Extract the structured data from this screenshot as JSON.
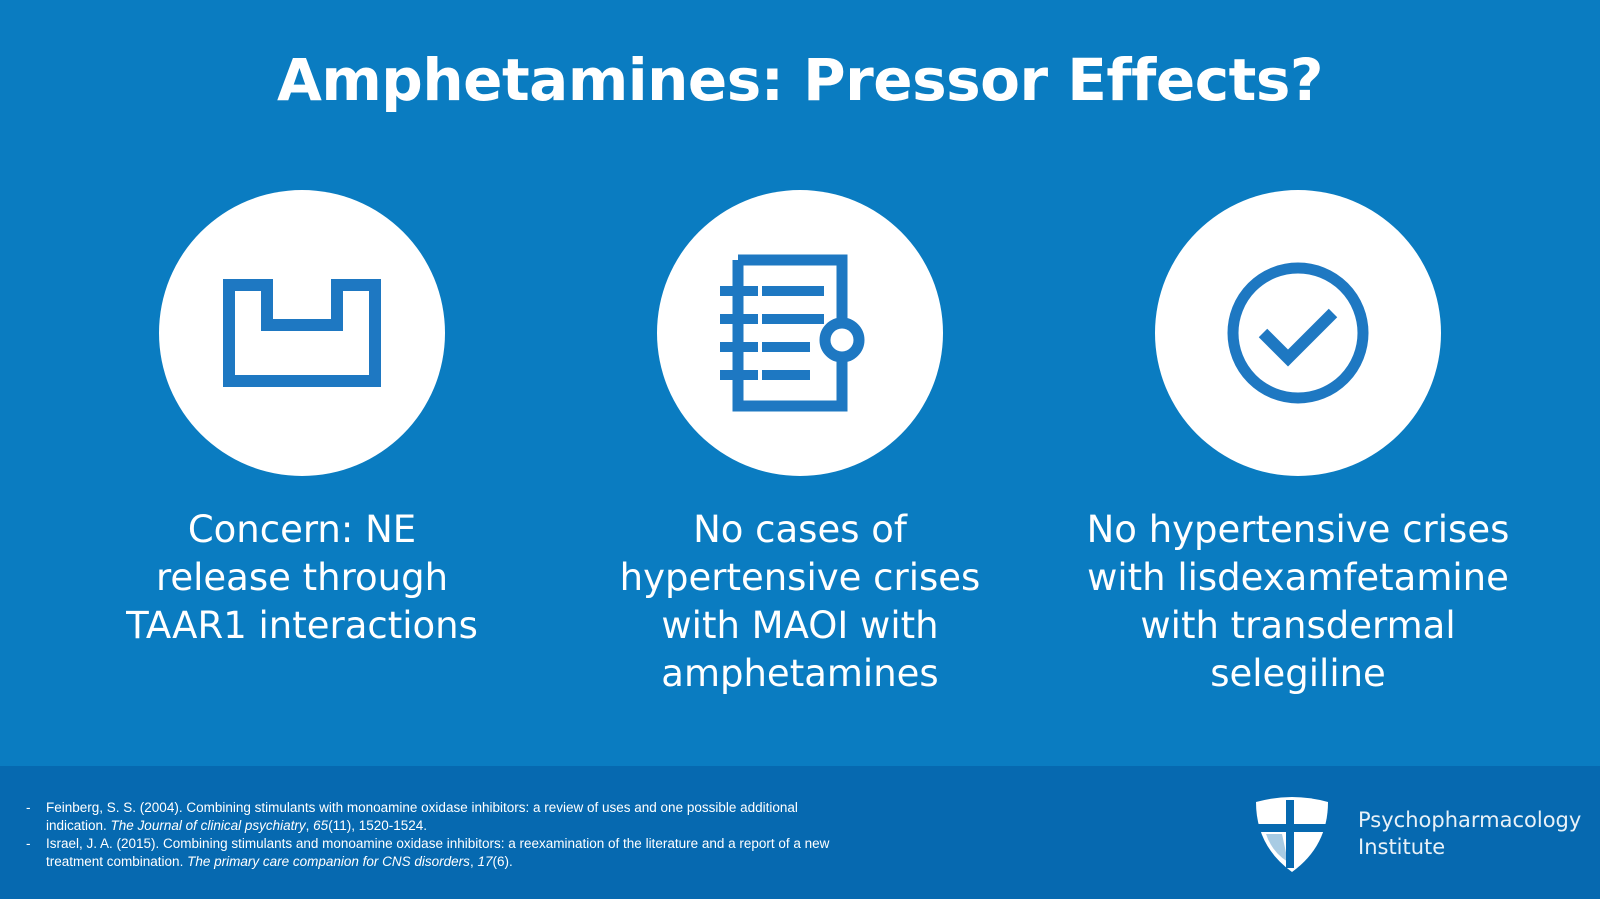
{
  "slide": {
    "title": "Amphetamines: Pressor Effects?",
    "points": [
      {
        "icon": "receptor-icon",
        "lines": [
          "Concern: NE",
          "release through",
          "TAAR1 interactions"
        ]
      },
      {
        "icon": "notebook-search-icon",
        "lines": [
          "No cases of",
          "hypertensive crises",
          "with MAOI with",
          "amphetamines"
        ]
      },
      {
        "icon": "check-circle-icon",
        "lines": [
          "No hypertensive crises",
          "with lisdexamfetamine",
          "with transdermal",
          "selegiline"
        ]
      }
    ]
  },
  "footer": {
    "references": [
      {
        "line1": "Feinberg, S. S. (2004). Combining stimulants with monoamine oxidase inhibitors: a review of uses and one possible additional",
        "line2_pre": "indication. ",
        "journal": "The Journal of clinical psychiatry",
        "sep": ", ",
        "volume": "65",
        "rest": "(11), 1520-1524."
      },
      {
        "line1": "Israel, J. A. (2015). Combining stimulants and monoamine oxidase inhibitors: a reexamination of the literature and a report of a new",
        "line2_pre": "treatment combination. ",
        "journal": "The primary care companion for CNS disorders",
        "sep": ", ",
        "volume": "17",
        "rest": "(6)."
      }
    ],
    "logo": {
      "line1": "Psychopharmacology",
      "line2": "Institute"
    }
  },
  "colors": {
    "background": "#0a7cc1",
    "footer": "#0669b0",
    "icon": "#1e78c2"
  }
}
